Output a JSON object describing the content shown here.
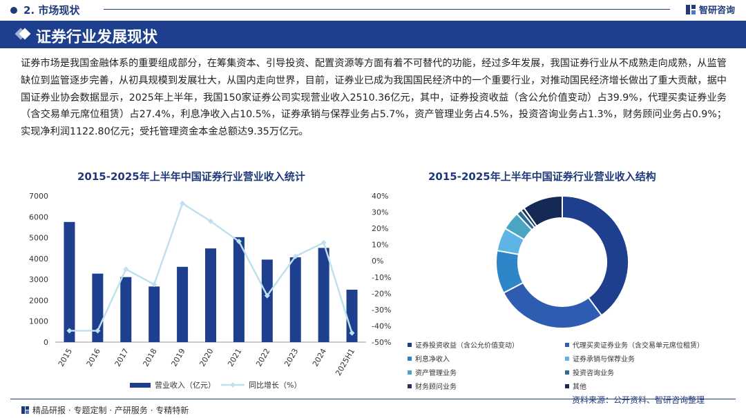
{
  "header": {
    "section": "2. 市场现状",
    "brand": "智研咨询"
  },
  "banner": {
    "title": "证券行业发展现状"
  },
  "paragraph": "证券市场是我国金融体系的重要组成部分，在筹集资本、引导投资、配置资源等方面有着不可替代的功能，经过多年发展，我国证券行业从不成熟走向成熟，从监管缺位到监管逐步完善，从初具规模到发展壮大，从国内走向世界，目前，证券业已成为我国国民经济中的一个重要行业，对推动国民经济增长做出了重大贡献，据中国证券业协会数据显示，2025年上半年，我国150家证券公司实现营业收入2510.36亿元，其中，证券投资收益（含公允价值变动）占39.9%，代理买卖证券业务（含交易单元席位租赁）占27.4%，利息净收入占10.5%，证券承销与保荐业务占5.7%，资产管理业务占4.5%，投资咨询业务占1.3%，财务顾问业务占0.9%；实现净利润1122.80亿元；受托管理资金本金总额达9.35万亿元。",
  "footer": {
    "left": "精品研报 · 专题定制 · 产研服务 · 专精特新",
    "source": "资料来源：公开资料、智研咨询整理"
  },
  "colors": {
    "primary": "#1d3f8e",
    "bar": "#1d3f8e",
    "line": "#bfe0ee"
  },
  "chart_data": [
    {
      "type": "bar",
      "title": "2015-2025年上半年中国证券行业营业收入统计",
      "categories": [
        "2015",
        "2016",
        "2017",
        "2018",
        "2019",
        "2020",
        "2021",
        "2022",
        "2023",
        "2024",
        "2025H1"
      ],
      "series": [
        {
          "name": "营业收入（亿元）",
          "type": "bar",
          "axis": "left",
          "values": [
            5752,
            3280,
            3113,
            2663,
            3605,
            4485,
            5024,
            3950,
            4059,
            4511,
            2510
          ]
        },
        {
          "name": "同比增长（%）",
          "type": "line",
          "axis": "right",
          "values": [
            -43.0,
            -43.0,
            -5.1,
            -14.5,
            35.4,
            24.4,
            12.0,
            -21.4,
            2.8,
            11.2,
            -44.4
          ]
        }
      ],
      "left_axis": {
        "ylim": [
          0,
          7000
        ],
        "ticks": [
          "0",
          "1000",
          "2000",
          "3000",
          "4000",
          "5000",
          "6000",
          "7000"
        ]
      },
      "right_axis": {
        "ylim": [
          -50,
          40
        ],
        "ticks": [
          "-50%",
          "-40%",
          "-30%",
          "-20%",
          "-10%",
          "0%",
          "10%",
          "20%",
          "30%",
          "40%"
        ]
      },
      "legend": [
        "营业收入（亿元）",
        "同比增长（%）"
      ]
    },
    {
      "type": "pie",
      "title": "2015-2025年上半年中国证券行业营业收入结构",
      "labels": [
        "证券投资收益（含公允价值变动）",
        "代理买卖证券业务（含交易单元席位租赁）",
        "利息净收入",
        "证券承销与保荐业务",
        "资产管理业务",
        "投资咨询业务",
        "财务顾问业务",
        "其他"
      ],
      "values": [
        39.9,
        27.4,
        10.5,
        5.7,
        4.5,
        1.3,
        0.9,
        9.8
      ],
      "colors": [
        "#1d3f8e",
        "#2d5cb0",
        "#2e86c8",
        "#5fb4e6",
        "#4aa6c0",
        "#2a6e94",
        "#1d3560",
        "#142a55"
      ]
    }
  ]
}
